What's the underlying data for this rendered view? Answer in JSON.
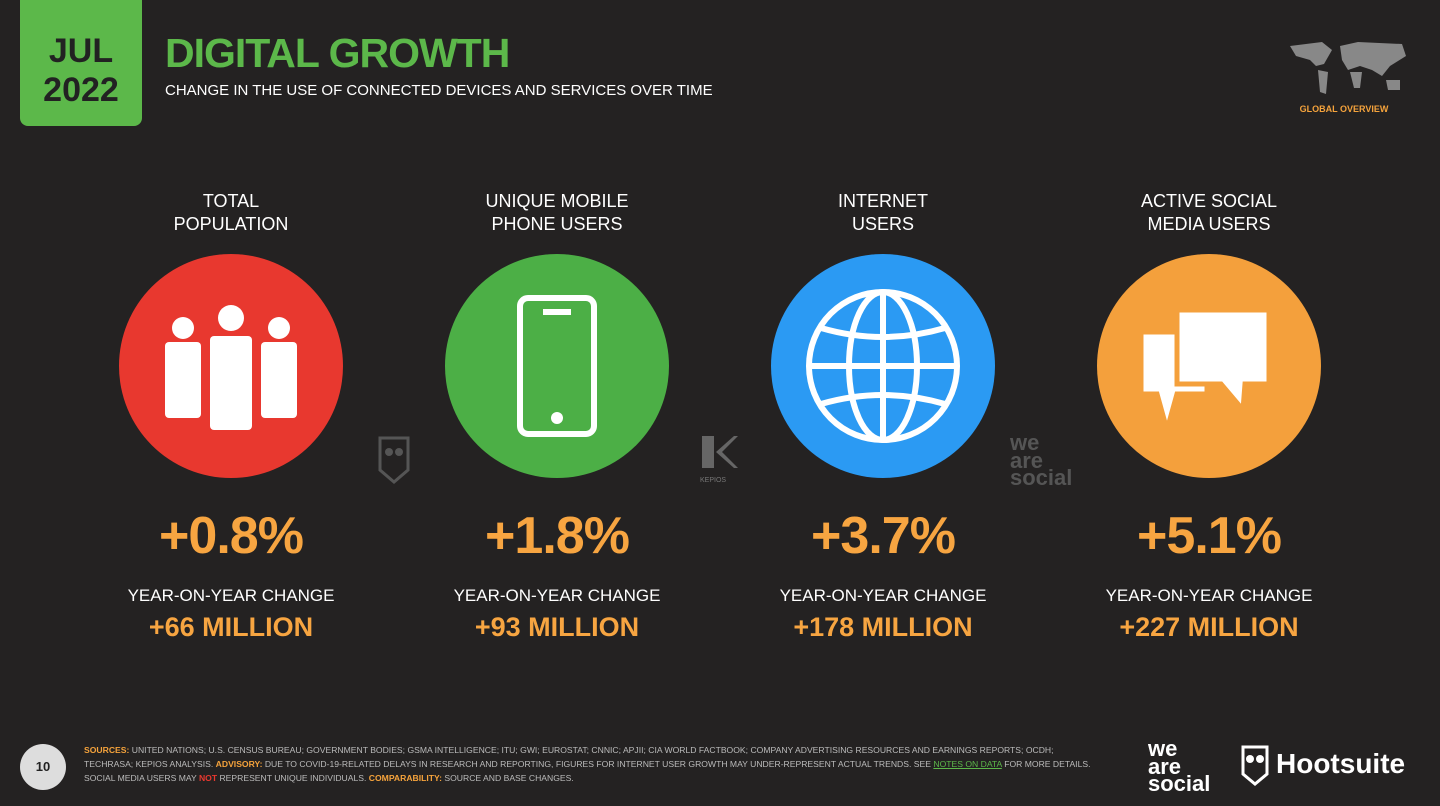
{
  "header": {
    "month": "JUL",
    "year": "2022",
    "title": "DIGITAL GROWTH",
    "subtitle": "CHANGE IN THE USE OF CONNECTED DEVICES AND SERVICES OVER TIME",
    "badge": "GLOBAL OVERVIEW"
  },
  "cards": [
    {
      "label": [
        "TOTAL",
        "POPULATION"
      ],
      "change": "+0.8%",
      "change_label": "YEAR-ON-YEAR CHANGE",
      "absolute": "+66 MILLION"
    },
    {
      "label": [
        "UNIQUE MOBILE",
        "PHONE USERS"
      ],
      "change": "+1.8%",
      "change_label": "YEAR-ON-YEAR CHANGE",
      "absolute": "+93 MILLION"
    },
    {
      "label": [
        "INTERNET",
        "USERS"
      ],
      "change": "+3.7%",
      "change_label": "YEAR-ON-YEAR CHANGE",
      "absolute": "+178 MILLION"
    },
    {
      "label": [
        "ACTIVE SOCIAL",
        "MEDIA USERS"
      ],
      "change": "+5.1%",
      "change_label": "YEAR-ON-YEAR CHANGE",
      "absolute": "+227 MILLION"
    }
  ],
  "watermarks": {
    "kepios": "KEPIOS",
    "we_are_social": [
      "we",
      "are",
      "social"
    ]
  },
  "footer": {
    "page": "10",
    "sources": [
      {
        "text": "SOURCES:",
        "style": "key"
      },
      {
        "text": " UNITED NATIONS; U.S. CENSUS BUREAU; GOVERNMENT BODIES; GSMA INTELLIGENCE; ITU; GWI; EUROSTAT; CNNIC; APJII; CIA WORLD FACTBOOK; COMPANY ADVERTISING RESOURCES AND EARNINGS REPORTS; OCDH; TECHRASA; KEPIOS ANALYSIS. ",
        "style": "plain"
      },
      {
        "text": "ADVISORY:",
        "style": "key"
      },
      {
        "text": " DUE TO COVID-19-RELATED DELAYS IN RESEARCH AND REPORTING, FIGURES FOR INTERNET USER GROWTH MAY UNDER-REPRESENT ACTUAL TRENDS. SEE ",
        "style": "plain"
      },
      {
        "text": "NOTES ON DATA",
        "style": "link"
      },
      {
        "text": " FOR MORE DETAILS. SOCIAL MEDIA USERS MAY ",
        "style": "plain"
      },
      {
        "text": "NOT",
        "style": "alert"
      },
      {
        "text": " REPRESENT UNIQUE INDIVIDUALS. ",
        "style": "plain"
      },
      {
        "text": "COMPARABILITY:",
        "style": "key"
      },
      {
        "text": " SOURCE AND BASE CHANGES.",
        "style": "plain"
      }
    ],
    "logo_was": [
      "we",
      "are",
      "social"
    ],
    "logo_hootsuite": "Hootsuite"
  }
}
